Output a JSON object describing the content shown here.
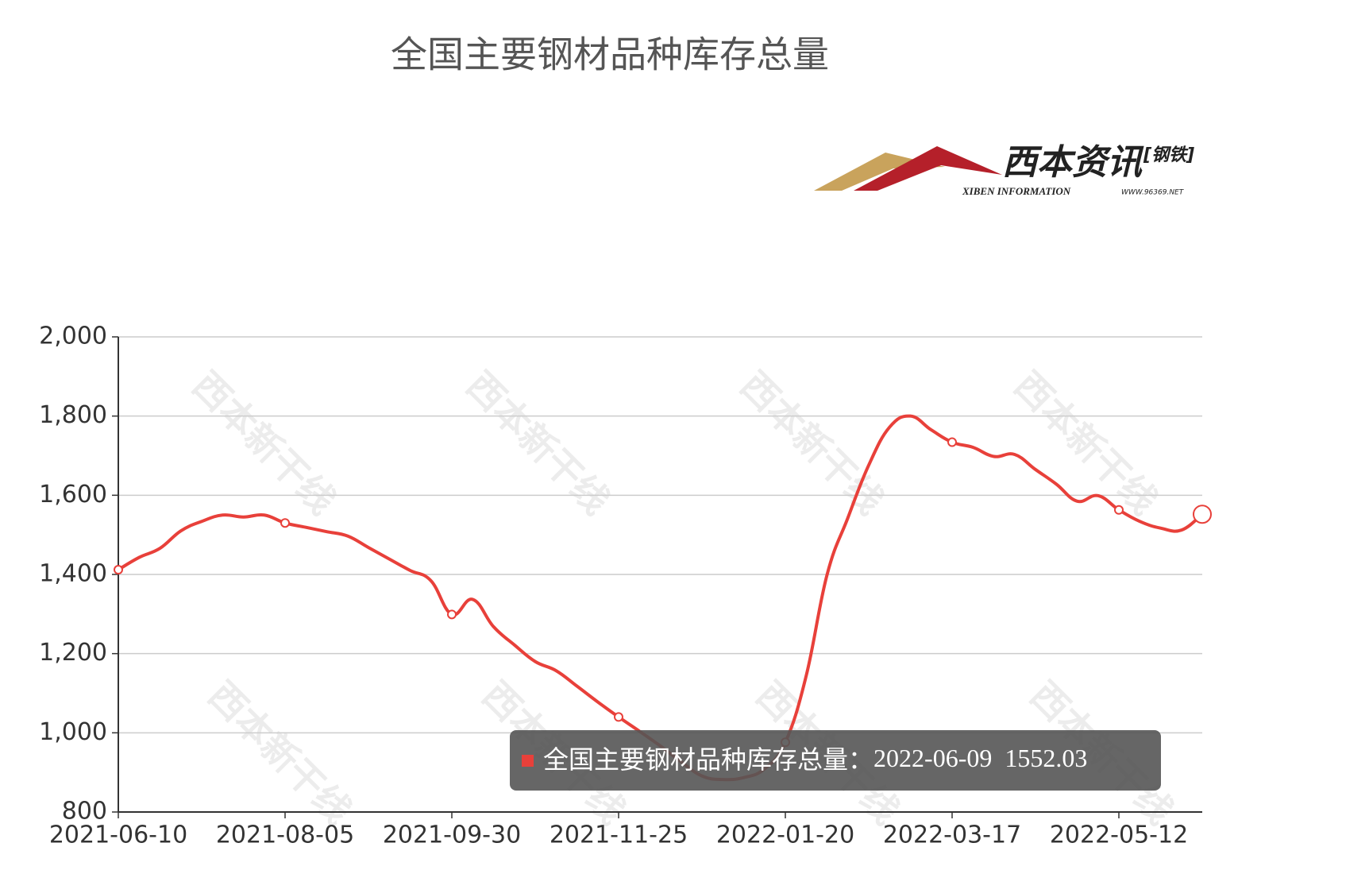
{
  "chart_data": {
    "type": "line",
    "title": "全国主要钢材品种库存总量",
    "logo": {
      "name": "西本资讯",
      "tag": "[钢铁]",
      "english": "XIBEN INFORMATION",
      "url": "WWW.96369.NET"
    },
    "watermark": "西本新干线",
    "categories": [
      "2021-06-10",
      null,
      null,
      null,
      null,
      null,
      null,
      null,
      "2021-08-05",
      null,
      null,
      null,
      null,
      null,
      null,
      null,
      "2021-09-30",
      null,
      null,
      null,
      null,
      null,
      null,
      null,
      "2021-11-25",
      null,
      null,
      null,
      null,
      null,
      null,
      null,
      "2022-01-20",
      null,
      null,
      null,
      null,
      null,
      null,
      null,
      "2022-03-17",
      null,
      null,
      null,
      null,
      null,
      null,
      null,
      "2022-05-12",
      null,
      null,
      null,
      "2022-06-09"
    ],
    "series": [
      {
        "name": "全国主要钢材品种库存总量",
        "color": "#e8403a",
        "values": [
          1412,
          1443,
          1466,
          1510,
          1534,
          1550,
          1545,
          1550,
          1530,
          1519,
          1508,
          1497,
          1468,
          1439,
          1410,
          1384,
          1299,
          1337,
          1268,
          1222,
          1180,
          1157,
          1118,
          1078,
          1040,
          1004,
          967,
          927,
          891,
          882,
          887,
          909,
          976,
          1144,
          1399,
          1543,
          1676,
          1772,
          1800,
          1765,
          1734,
          1721,
          1698,
          1703,
          1665,
          1628,
          1585,
          1599,
          1563,
          1534,
          1517,
          1512,
          1552.03
        ]
      }
    ],
    "ylim": [
      800,
      2000
    ],
    "yticks": [
      {
        "value": 800,
        "label": "800"
      },
      {
        "value": 1000,
        "label": "1,000"
      },
      {
        "value": 1200,
        "label": "1,200"
      },
      {
        "value": 1400,
        "label": "1,400"
      },
      {
        "value": 1600,
        "label": "1,600"
      },
      {
        "value": 1800,
        "label": "1,800"
      },
      {
        "value": 2000,
        "label": "2,000"
      }
    ],
    "grid": true,
    "tooltip": {
      "separator": "："
    }
  }
}
